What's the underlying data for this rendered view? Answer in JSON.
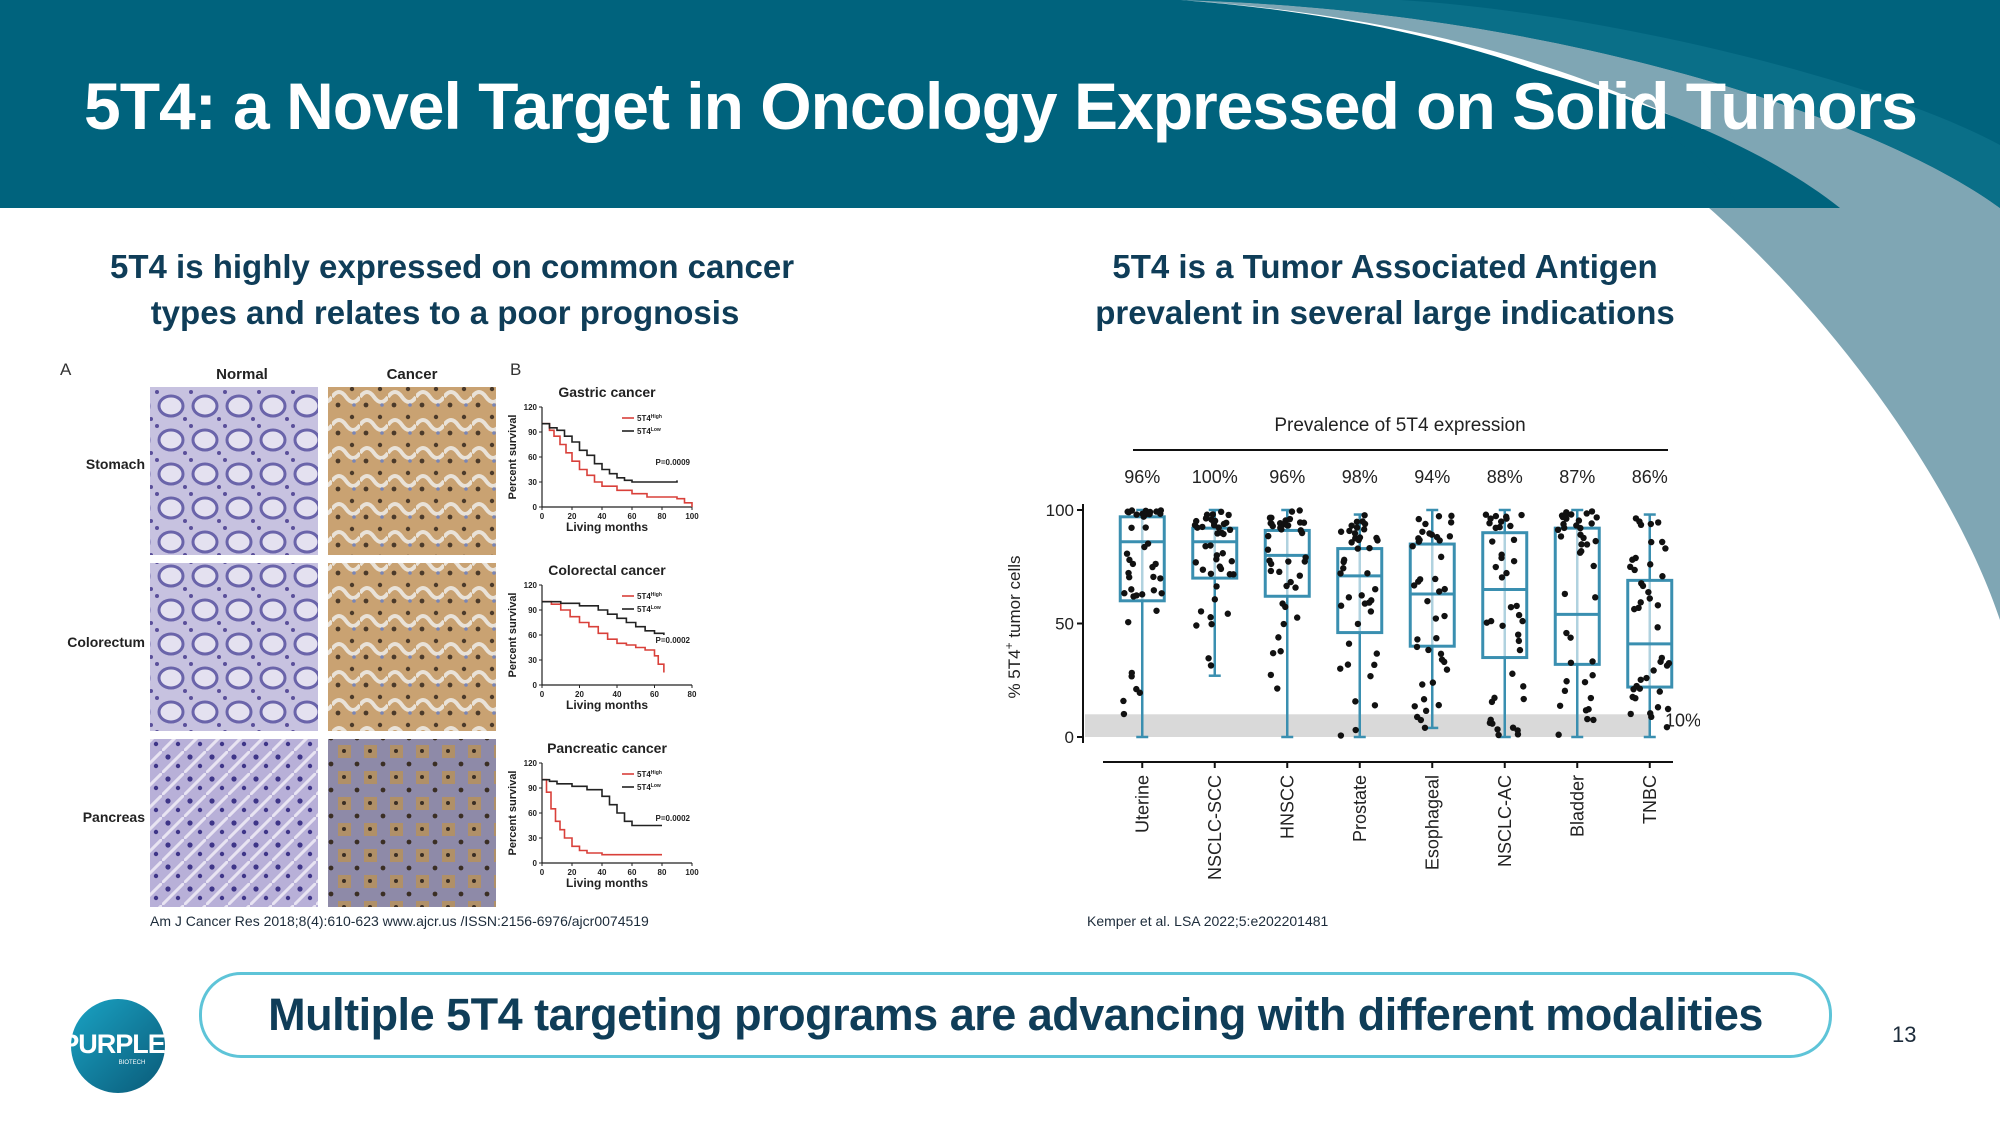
{
  "slide": {
    "title": "5T4: a Novel Target in Oncology Expressed on Solid Tumors",
    "left_heading": [
      "5T4 is highly expressed on common cancer",
      "types and relates to a poor prognosis"
    ],
    "right_heading": [
      "5T4 is a Tumor Associated Antigen",
      "prevalent in several large indications"
    ],
    "left_citation": "Am J Cancer Res 2018;8(4):610-623 www.ajcr.us /ISSN:2156-6976/ajcr0074519",
    "right_citation": "Kemper et al. LSA 2022;5:e202201481",
    "banner": "Multiple 5T4 targeting programs are advancing with different modalities",
    "page_number": "13",
    "logo_text": "PURPLE",
    "logo_subtext": "BIOTECH",
    "colors": {
      "header": "#00637d",
      "accent_arc": "#7fa6b4",
      "banner_border": "#5ec4d8",
      "text": "#0f3d58",
      "box": "#3a8fb0"
    }
  },
  "histology": {
    "panel_label": "A",
    "col_headers": [
      "Normal",
      "Cancer"
    ],
    "rows": [
      "Stomach",
      "Colorectum",
      "Pancreas"
    ]
  },
  "chart_data": [
    {
      "type": "line",
      "panel_label": "B",
      "title": "Gastric cancer",
      "xlabel": "Living months",
      "ylabel": "Percent survival",
      "xticks": [
        "0",
        "20",
        "40",
        "60",
        "80",
        "100"
      ],
      "yticks": [
        "0",
        "30",
        "60",
        "90",
        "120"
      ],
      "xlim": [
        0,
        100
      ],
      "ylim": [
        0,
        120
      ],
      "p_value": "P=0.0009",
      "series": [
        {
          "name": "5T4high",
          "legend_main": "5T4",
          "legend_sup": "High",
          "color": "#d9403a",
          "x": [
            0,
            5,
            8,
            12,
            16,
            20,
            25,
            30,
            35,
            40,
            50,
            60,
            70,
            80,
            90,
            95,
            100
          ],
          "y": [
            100,
            92,
            85,
            75,
            65,
            55,
            45,
            38,
            30,
            25,
            20,
            16,
            12,
            12,
            10,
            5,
            0
          ]
        },
        {
          "name": "5T4low",
          "legend_main": "5T4",
          "legend_sup": "Low",
          "color": "#222222",
          "x": [
            0,
            5,
            10,
            15,
            20,
            25,
            30,
            35,
            40,
            45,
            50,
            55,
            60,
            70,
            85,
            90
          ],
          "y": [
            100,
            95,
            92,
            85,
            78,
            68,
            62,
            52,
            45,
            40,
            35,
            32,
            30,
            30,
            30,
            32
          ]
        }
      ]
    },
    {
      "type": "line",
      "title": "Colorectal cancer",
      "xlabel": "Living months",
      "ylabel": "Percent survival",
      "xticks": [
        "0",
        "20",
        "40",
        "60",
        "80"
      ],
      "yticks": [
        "0",
        "30",
        "60",
        "90",
        "120"
      ],
      "xlim": [
        0,
        80
      ],
      "ylim": [
        0,
        120
      ],
      "p_value": "P=0.0002",
      "series": [
        {
          "name": "5T4high",
          "legend_main": "5T4",
          "legend_sup": "High",
          "color": "#d9403a",
          "x": [
            0,
            5,
            10,
            15,
            20,
            25,
            30,
            35,
            40,
            45,
            50,
            55,
            60,
            62,
            65
          ],
          "y": [
            100,
            97,
            90,
            82,
            75,
            70,
            62,
            55,
            50,
            48,
            45,
            42,
            35,
            25,
            15
          ]
        },
        {
          "name": "5T4low",
          "legend_main": "5T4",
          "legend_sup": "Low",
          "color": "#222222",
          "x": [
            0,
            10,
            20,
            30,
            35,
            40,
            45,
            50,
            55,
            60,
            65
          ],
          "y": [
            100,
            98,
            95,
            90,
            85,
            80,
            75,
            70,
            65,
            62,
            60
          ]
        }
      ]
    },
    {
      "type": "line",
      "title": "Pancreatic cancer",
      "xlabel": "Living months",
      "ylabel": "Percent survival",
      "xticks": [
        "0",
        "20",
        "40",
        "60",
        "80",
        "100"
      ],
      "yticks": [
        "0",
        "30",
        "60",
        "90",
        "120"
      ],
      "xlim": [
        0,
        100
      ],
      "ylim": [
        0,
        120
      ],
      "p_value": "P=0.0002",
      "series": [
        {
          "name": "5T4high",
          "legend_main": "5T4",
          "legend_sup": "High",
          "color": "#d9403a",
          "x": [
            0,
            3,
            6,
            9,
            12,
            15,
            20,
            25,
            30,
            40,
            50,
            60,
            80
          ],
          "y": [
            100,
            85,
            65,
            50,
            40,
            30,
            20,
            15,
            12,
            10,
            10,
            10,
            10
          ]
        },
        {
          "name": "5T4low",
          "legend_main": "5T4",
          "legend_sup": "Low",
          "color": "#222222",
          "x": [
            0,
            5,
            10,
            20,
            30,
            40,
            45,
            50,
            55,
            60,
            70,
            80
          ],
          "y": [
            100,
            98,
            95,
            92,
            88,
            80,
            70,
            60,
            50,
            45,
            45,
            45
          ]
        }
      ]
    },
    {
      "type": "box",
      "title": "Prevalence of 5T4 expression",
      "ylabel_main": "% 5T4",
      "ylabel_sup": "+",
      "ylabel_rest": " tumor cells",
      "ylim": [
        0,
        100
      ],
      "yticks": [
        "0",
        "50",
        "100"
      ],
      "threshold": 10,
      "threshold_label": "10%",
      "categories": [
        "Uterine",
        "NSCLC-SCC",
        "HNSCC",
        "Prostate",
        "Esophageal",
        "NSCLC-AC",
        "Bladder",
        "TNBC"
      ],
      "prevalence": [
        "96%",
        "100%",
        "96%",
        "98%",
        "94%",
        "88%",
        "87%",
        "86%"
      ],
      "box_stats": [
        {
          "min": 0,
          "q1": 60,
          "median": 86,
          "q3": 97,
          "max": 100
        },
        {
          "min": 27,
          "q1": 70,
          "median": 86,
          "q3": 92,
          "max": 100
        },
        {
          "min": 0,
          "q1": 62,
          "median": 80,
          "q3": 91,
          "max": 100
        },
        {
          "min": 0,
          "q1": 46,
          "median": 71,
          "q3": 83,
          "max": 98
        },
        {
          "min": 4,
          "q1": 40,
          "median": 63,
          "q3": 85,
          "max": 100
        },
        {
          "min": 0,
          "q1": 35,
          "median": 65,
          "q3": 90,
          "max": 100
        },
        {
          "min": 0,
          "q1": 32,
          "median": 54,
          "q3": 92,
          "max": 100
        },
        {
          "min": 0,
          "q1": 22,
          "median": 41,
          "q3": 69,
          "max": 98
        }
      ]
    }
  ]
}
